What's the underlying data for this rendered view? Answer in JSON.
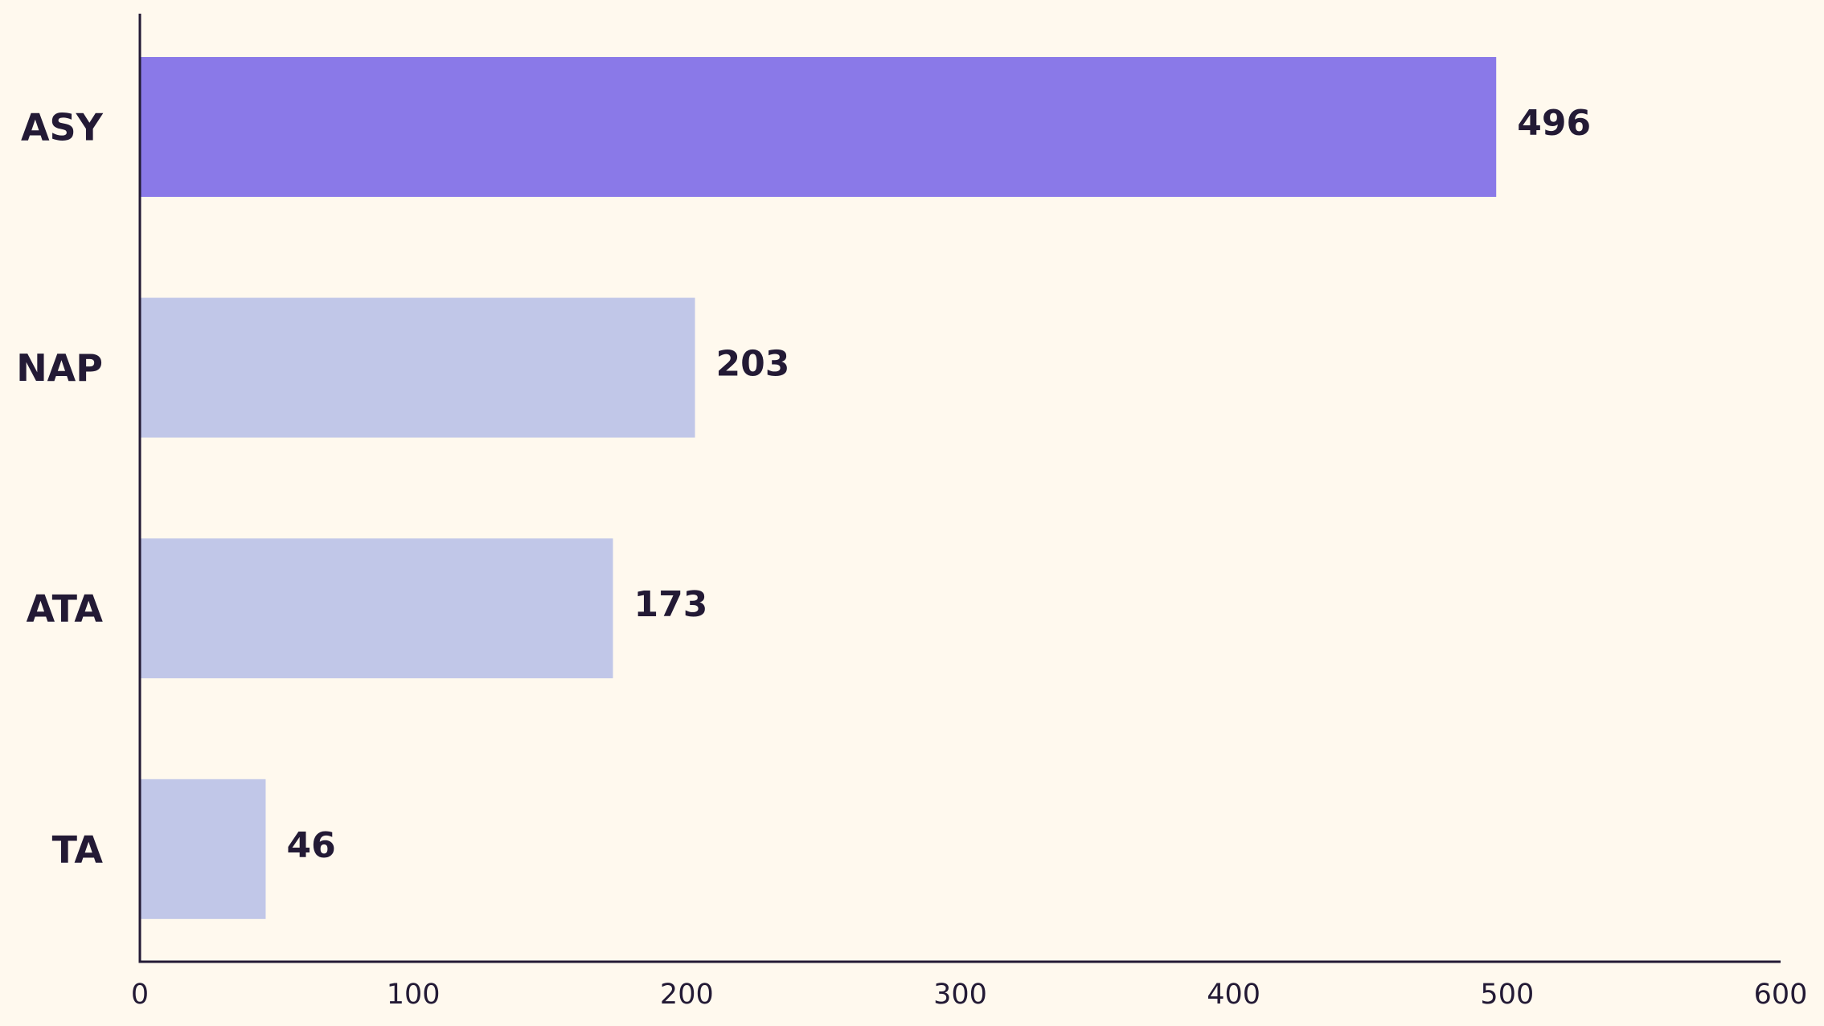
{
  "chart_data": {
    "type": "bar",
    "orientation": "horizontal",
    "categories": [
      "ASY",
      "NAP",
      "ATA",
      "TA"
    ],
    "values": [
      496,
      203,
      173,
      46
    ],
    "colors": [
      "#8a79e8",
      "#c1c7e8",
      "#c1c7e8",
      "#c1c7e8"
    ],
    "xlim": [
      0,
      600
    ],
    "xticks": [
      0,
      100,
      200,
      300,
      400,
      500,
      600
    ],
    "grid": false
  }
}
